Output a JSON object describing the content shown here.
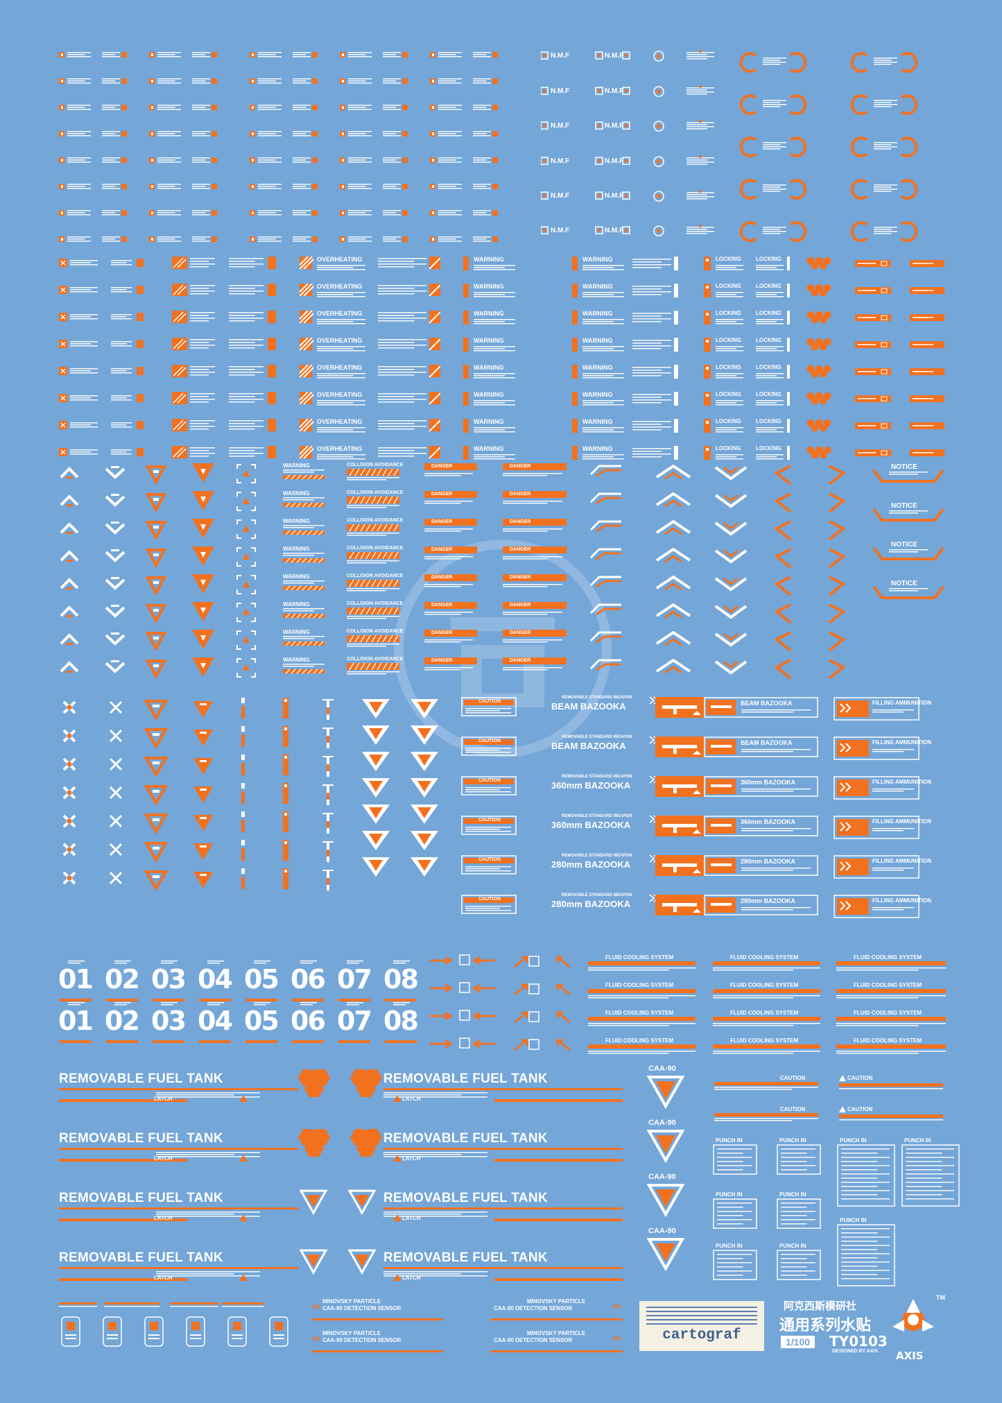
{
  "sheet": {
    "background": "#74a6d8",
    "accent": "#f2711f"
  },
  "labels": {
    "nmf": "N.M.F",
    "overheating": "OVERHEATING",
    "warning": "WARNING",
    "locking": "LOCKING",
    "collision": "COLLISION AVOIDANCE",
    "danger": "DANGER",
    "notice": "NOTICE",
    "caution": "CAUTION",
    "beam_bazooka": "BEAM BAZOOKA",
    "bazooka360": "360mm BAZOOKA",
    "bazooka280": "280mm BAZOOKA",
    "standard_weapon": "REMOVABLE STANDARD WEAPON",
    "filling_ammunition": "FILLING AMMUNITION",
    "fluid_cooling": "FLUID COOLING SYSTEM",
    "removable_fuel_tank": "REMOVABLE FUEL TANK",
    "latch": "LATCH",
    "caa90": "CAA-90",
    "punch_in": "PUNCH IN",
    "minovsky": "MINOVSKY PARTICLE",
    "detection": "CAA-90 DETECTION SENSOR"
  },
  "numbers": [
    "01",
    "02",
    "03",
    "04",
    "05",
    "06",
    "07",
    "08"
  ],
  "brand": {
    "cartograf": "cartograf",
    "chinese_lab": "阿克西斯模研社",
    "chinese_series": "通用系列水贴",
    "scale": "1/100",
    "code": "TY0103",
    "designed_by": "DESIGNED BY AXIS",
    "axis": "AXIS",
    "tm": "TM"
  },
  "watermark": "AXIS"
}
